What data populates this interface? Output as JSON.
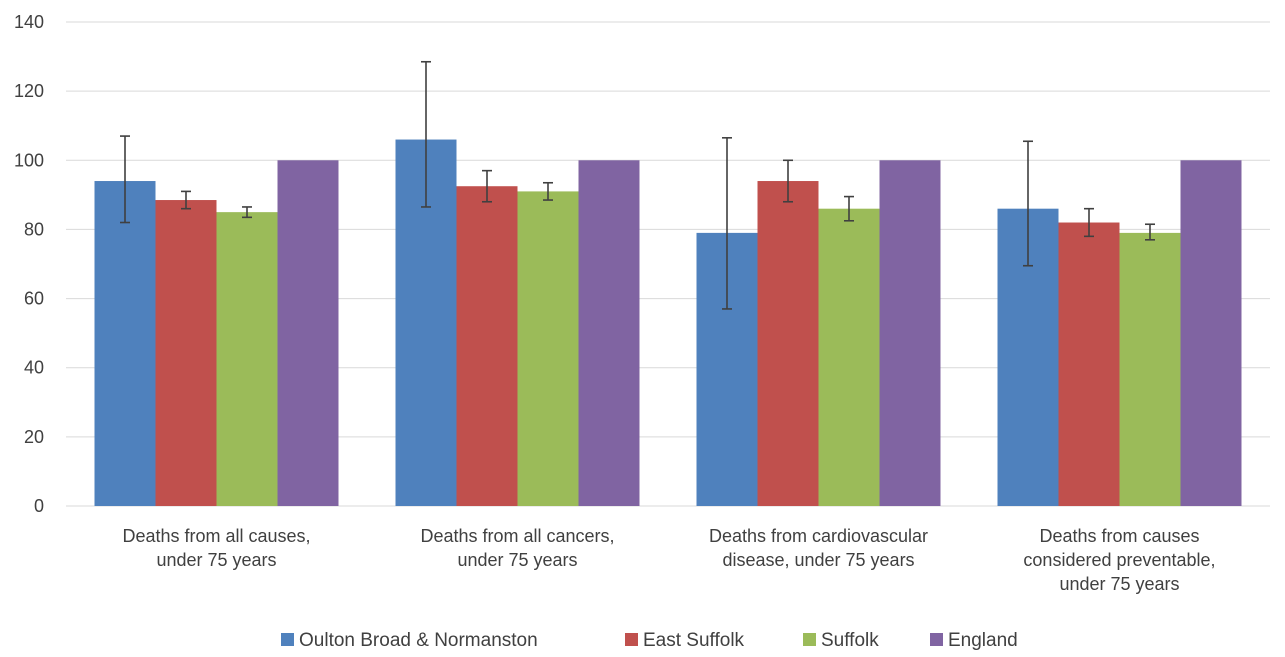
{
  "chart_data": {
    "type": "bar",
    "title": "",
    "xlabel": "",
    "ylabel": "",
    "ylim": [
      0,
      140
    ],
    "yticks": [
      0,
      20,
      40,
      60,
      80,
      100,
      120,
      140
    ],
    "grid": true,
    "legend_position": "bottom",
    "categories": [
      [
        "Deaths from all causes,",
        "under 75 years"
      ],
      [
        "Deaths from all cancers,",
        "under 75 years"
      ],
      [
        "Deaths from cardiovascular",
        "disease, under 75 years"
      ],
      [
        "Deaths from causes",
        "considered preventable,",
        "under 75 years"
      ]
    ],
    "series": [
      {
        "name": "Oulton Broad & Normanston",
        "color": "#4f81bd",
        "values": [
          94,
          106,
          79,
          86
        ],
        "error_low": [
          82,
          86.5,
          57,
          69.5
        ],
        "error_high": [
          107,
          128.5,
          106.5,
          105.5
        ]
      },
      {
        "name": "East Suffolk",
        "color": "#c0504d",
        "values": [
          88.5,
          92.5,
          94,
          82
        ],
        "error_low": [
          86,
          88,
          88,
          78
        ],
        "error_high": [
          91,
          97,
          100,
          86
        ]
      },
      {
        "name": "Suffolk",
        "color": "#9bbb59",
        "values": [
          85,
          91,
          86,
          79
        ],
        "error_low": [
          83.5,
          88.5,
          82.5,
          77
        ],
        "error_high": [
          86.5,
          93.5,
          89.5,
          81.5
        ]
      },
      {
        "name": "England",
        "color": "#8064a2",
        "values": [
          100,
          100,
          100,
          100
        ],
        "error_low": null,
        "error_high": null
      }
    ]
  }
}
